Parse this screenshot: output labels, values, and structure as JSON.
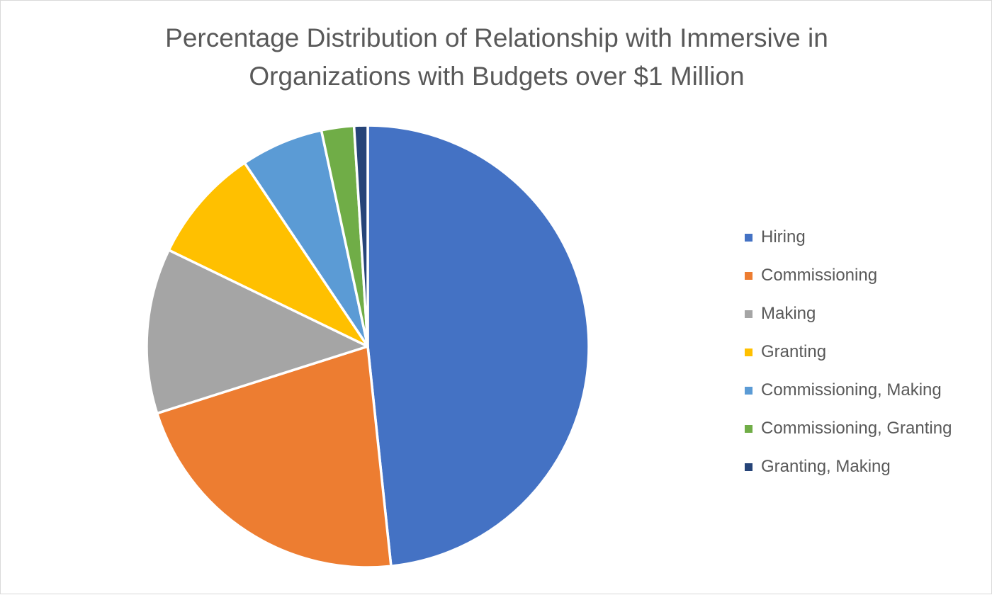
{
  "chart_data": {
    "type": "pie",
    "title_lines": [
      "Percentage Distribution of Relationship with Immersive in",
      "Organizations with Budgets over $1 Million"
    ],
    "categories": [
      "Hiring",
      "Commissioning",
      "Making",
      "Granting",
      "Commissioning, Making",
      "Commissioning, Granting",
      "Granting, Making"
    ],
    "values": [
      48.8,
      22.0,
      12.2,
      8.5,
      6.1,
      2.4,
      1.0
    ],
    "unit": "%",
    "colors": [
      "#4472C4",
      "#ED7D31",
      "#A5A5A5",
      "#FFC000",
      "#5B9BD5",
      "#70AD47",
      "#264478"
    ],
    "start_angle": "12 o'clock",
    "direction": "clockwise",
    "legend_position": "right",
    "data_labels": false
  }
}
